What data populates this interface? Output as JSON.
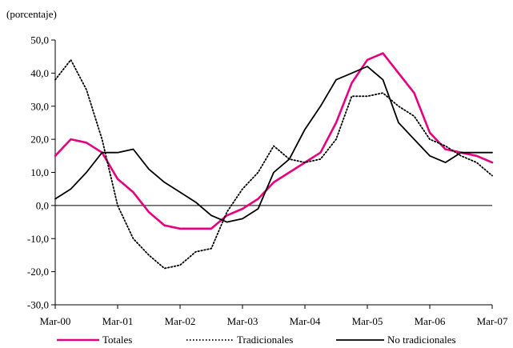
{
  "chart_data": {
    "type": "line",
    "unit_label": "(porcentaje)",
    "ylim": [
      -30,
      50
    ],
    "y_ticks": [
      "-30,0",
      "-20,0",
      "-10,0",
      "0,0",
      "10,0",
      "20,0",
      "30,0",
      "40,0",
      "50,0"
    ],
    "x_ticks": [
      "Mar-00",
      "Mar-01",
      "Mar-02",
      "Mar-03",
      "Mar-04",
      "Mar-05",
      "Mar-06",
      "Mar-07"
    ],
    "x": [
      "Mar-00",
      "Jun-00",
      "Sep-00",
      "Dic-00",
      "Mar-01",
      "Jun-01",
      "Sep-01",
      "Dic-01",
      "Mar-02",
      "Jun-02",
      "Sep-02",
      "Dic-02",
      "Mar-03",
      "Jun-03",
      "Sep-03",
      "Dic-03",
      "Mar-04",
      "Jun-04",
      "Sep-04",
      "Dic-04",
      "Mar-05",
      "Jun-05",
      "Sep-05",
      "Dic-05",
      "Mar-06",
      "Jun-06",
      "Sep-06",
      "Dic-06",
      "Mar-07"
    ],
    "legend_position": "bottom",
    "series": [
      {
        "name": "Totales",
        "color": "#e6007e",
        "style": "solid",
        "values": [
          15,
          20,
          19,
          16,
          8,
          4,
          -2,
          -6,
          -7,
          -7,
          -7,
          -3,
          -1,
          2,
          7,
          10,
          13,
          16,
          25,
          37,
          44,
          46,
          40,
          34,
          22,
          17,
          16,
          15,
          13
        ]
      },
      {
        "name": "Tradicionales",
        "color": "#000000",
        "style": "dotted",
        "values": [
          38,
          44,
          35,
          20,
          0,
          -10,
          -15,
          -19,
          -18,
          -14,
          -13,
          -2,
          5,
          10,
          18,
          14,
          13,
          14,
          20,
          33,
          33,
          34,
          30,
          27,
          20,
          18,
          15,
          13,
          9
        ]
      },
      {
        "name": "No tradicionales",
        "color": "#000000",
        "style": "solid",
        "values": [
          2,
          5,
          10,
          16,
          16,
          17,
          11,
          7,
          4,
          1,
          -3,
          -5,
          -4,
          -1,
          10,
          14,
          23,
          30,
          38,
          40,
          42,
          38,
          25,
          20,
          15,
          13,
          16,
          16,
          16
        ]
      }
    ]
  }
}
